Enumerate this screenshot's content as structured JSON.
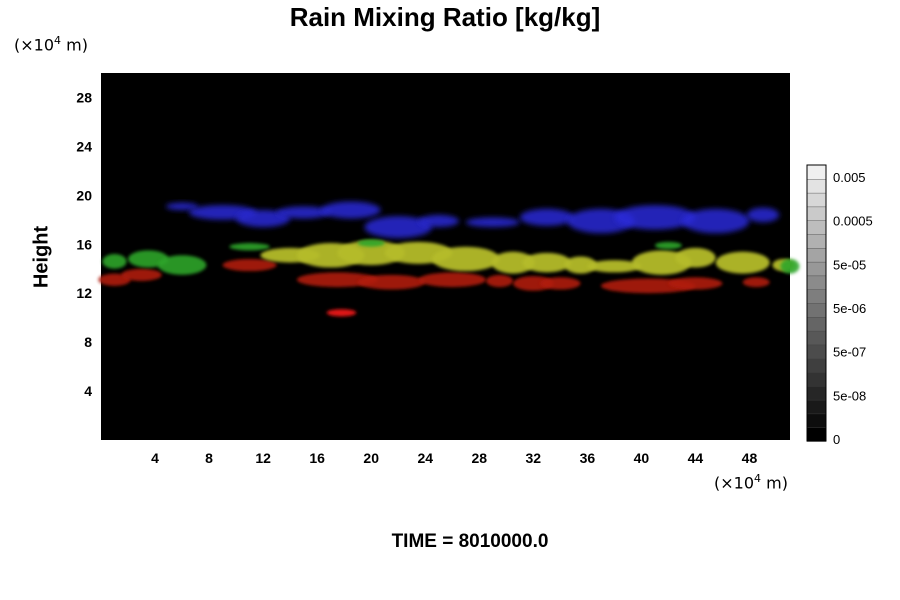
{
  "chart_data": {
    "type": "heatmap",
    "title": "Rain Mixing Ratio [kg/kg]",
    "ylabel": "Height",
    "y_unit": {
      "prefix": "(×10",
      "exp": "4",
      "suffix": " m)"
    },
    "x_unit": {
      "prefix": "(×10",
      "exp": "4",
      "suffix": " m)"
    },
    "xlim": [
      0,
      51
    ],
    "ylim": [
      0,
      30
    ],
    "x_ticks": [
      "4",
      "8",
      "12",
      "16",
      "20",
      "24",
      "28",
      "32",
      "36",
      "40",
      "44",
      "48"
    ],
    "y_ticks": [
      "4",
      "8",
      "12",
      "16",
      "20",
      "24",
      "28"
    ],
    "background_color": "#000000",
    "colorbar": {
      "labels": [
        "0",
        "5e-08",
        "5e-07",
        "5e-06",
        "5e-05",
        "0.0005",
        "0.005"
      ],
      "levels": 20,
      "color_min": "#000000",
      "color_max": "#f0f0f0"
    },
    "regions": [
      {
        "name": "upper band",
        "color": "#2a2ad8",
        "x_range": [
          5,
          50
        ],
        "y_range": [
          16.5,
          19.5
        ]
      },
      {
        "name": "mid band",
        "color": "#b5bc2a",
        "x_range": [
          10,
          51
        ],
        "y_range": [
          13.5,
          16.5
        ]
      },
      {
        "name": "green patches",
        "color": "#2fa62a",
        "x_range": [
          0,
          8
        ],
        "y_range": [
          13.5,
          16
        ]
      },
      {
        "name": "lower band",
        "color": "#b01a10",
        "x_range": [
          0,
          44
        ],
        "y_range": [
          12.5,
          14
        ]
      },
      {
        "name": "isolated cell",
        "color": "#e01818",
        "x_range": [
          16.5,
          19
        ],
        "y_range": [
          10,
          10.8
        ]
      }
    ],
    "time_label": "TIME = 8010000.0"
  }
}
